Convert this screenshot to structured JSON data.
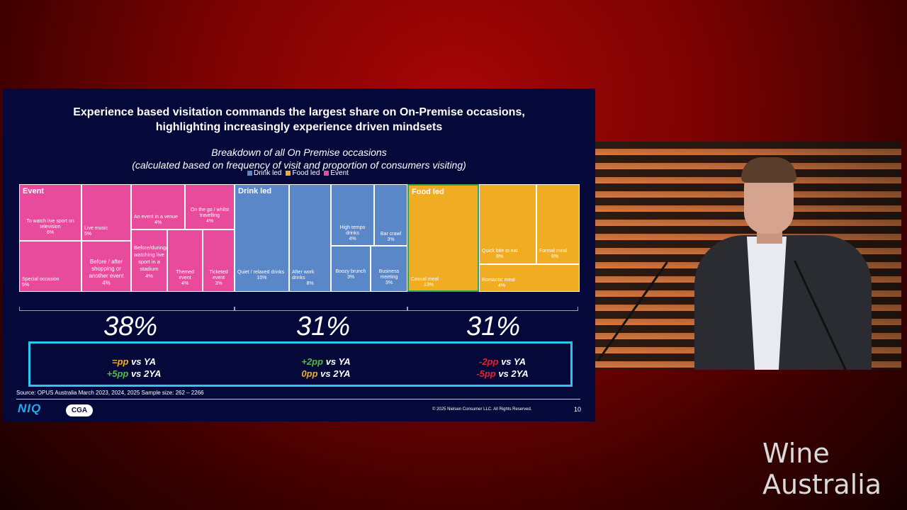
{
  "slide": {
    "title_line1": "Experience based visitation commands the largest share on On-Premise occasions,",
    "title_line2": "highlighting increasingly experience driven mindsets",
    "subtitle_line1": "Breakdown of all On Premise occasions",
    "subtitle_line2": "(calculated based on frequency of visit and proportion of consumers visiting)",
    "legend": [
      {
        "label": "Drink led",
        "color": "#5a87c8"
      },
      {
        "label": "Food led",
        "color": "#f0ac22"
      },
      {
        "label": "Event",
        "color": "#e84a9c"
      }
    ],
    "source": "Source: OPUS Australia March 2023, 2024, 2025 Sample size: 262 – 2266",
    "copyright": "© 2025 Nielsen Consumer LLC. All Rights Reserved.",
    "page_number": "10",
    "logos": {
      "niq": "NIQ",
      "cga": "CGA"
    }
  },
  "chart_data": {
    "type": "treemap",
    "groups": [
      {
        "name": "Event",
        "share": "38%",
        "change_ya": {
          "value": "=pp",
          "suffix": " vs YA",
          "color": "#f0ac22"
        },
        "change_2ya": {
          "value": "+5pp",
          "suffix": " vs 2YA",
          "color": "#54b84a"
        },
        "items": [
          {
            "label": "To watch live sport on television",
            "value": "6%"
          },
          {
            "label": "Special occasion",
            "value": "5%"
          },
          {
            "label": "Live music",
            "value": "5%"
          },
          {
            "label": "Before / after shopping or another event",
            "value": "4%"
          },
          {
            "label": "An event in a venue",
            "value": "4%"
          },
          {
            "label": "On the go / whilst travelling",
            "value": "4%"
          },
          {
            "label": "Before/during/after watching live sport in a stadium",
            "value": "4%"
          },
          {
            "label": "Themed event",
            "value": "4%"
          },
          {
            "label": "Ticketed event",
            "value": "3%"
          }
        ]
      },
      {
        "name": "Drink led",
        "share": "31%",
        "change_ya": {
          "value": "+2pp",
          "suffix": " vs YA",
          "color": "#54b84a"
        },
        "change_2ya": {
          "value": "0pp",
          "suffix": " vs 2YA",
          "color": "#f0ac22"
        },
        "items": [
          {
            "label": "Quiet / relaxed drinks",
            "value": "10%"
          },
          {
            "label": "After work drinks",
            "value": "8%"
          },
          {
            "label": "High tempo drinks",
            "value": "4%"
          },
          {
            "label": "Bar crawl",
            "value": "3%"
          },
          {
            "label": "Boozy brunch",
            "value": "3%"
          },
          {
            "label": "Business meeting",
            "value": "3%"
          }
        ]
      },
      {
        "name": "Food led",
        "share": "31%",
        "change_ya": {
          "value": "-2pp",
          "suffix": " vs YA",
          "color": "#e8202a"
        },
        "change_2ya": {
          "value": "-5pp",
          "suffix": " vs 2YA",
          "color": "#e8202a"
        },
        "items": [
          {
            "label": "Casual meal",
            "value": "13%"
          },
          {
            "label": "Quick bite to eat",
            "value": "8%"
          },
          {
            "label": "Formal meal",
            "value": "6%"
          },
          {
            "label": "Romantic meal",
            "value": "4%"
          }
        ]
      }
    ]
  },
  "brand": {
    "line1": "Wine",
    "line2": "Australia"
  }
}
